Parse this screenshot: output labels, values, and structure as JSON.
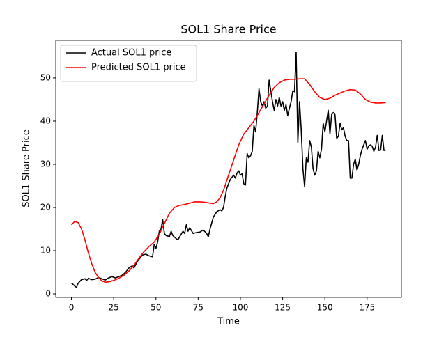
{
  "chart_data": {
    "type": "line",
    "title": "SOL1 Share Price",
    "x_label": "Time",
    "y_label": "SOL1 Share Price",
    "xlim": [
      -9.3,
      195.3
    ],
    "ylim": [
      -0.8,
      58.7
    ],
    "xticks": [
      0,
      25,
      50,
      75,
      100,
      125,
      150,
      175
    ],
    "yticks": [
      0,
      10,
      20,
      30,
      40,
      50
    ],
    "legend": "upper left",
    "series": [
      {
        "name": "Actual SOL1 price",
        "color": "#000000",
        "x": [
          0,
          1,
          2,
          3,
          4,
          6,
          8,
          9,
          10,
          12,
          14,
          16,
          18,
          20,
          22,
          24,
          26,
          28,
          30,
          32,
          34,
          36,
          37,
          39,
          40,
          42,
          44,
          46,
          48,
          49,
          50,
          51,
          52,
          53,
          54,
          55,
          56,
          58,
          59,
          60,
          62,
          63,
          64,
          66,
          67,
          68,
          69,
          70,
          72,
          74,
          76,
          78,
          80,
          81,
          82,
          84,
          86,
          88,
          89,
          90,
          91,
          92,
          94,
          96,
          97,
          98,
          99,
          100,
          101,
          102,
          103,
          104,
          105,
          106,
          107,
          108,
          109,
          110,
          111,
          112,
          113,
          114,
          115,
          116,
          117,
          118,
          119,
          120,
          121,
          122,
          123,
          124,
          125,
          126,
          127,
          128,
          129,
          130,
          131,
          132,
          133,
          134,
          135,
          136,
          137,
          138,
          139,
          140,
          141,
          142,
          143,
          144,
          145,
          146,
          147,
          148,
          149,
          150,
          151,
          152,
          153,
          154,
          155,
          156,
          157,
          158,
          159,
          160,
          161,
          162,
          163,
          164,
          165,
          166,
          167,
          168,
          169,
          170,
          171,
          172,
          173,
          174,
          175,
          176,
          177,
          178,
          179,
          180,
          181,
          182,
          183,
          184,
          185,
          186
        ],
        "values": [
          2.5,
          2.2,
          1.8,
          1.5,
          2.5,
          3.3,
          3.5,
          3.1,
          3.6,
          3.3,
          3.4,
          3.8,
          3.5,
          3.2,
          3.7,
          4.0,
          3.7,
          4.0,
          4.3,
          5.0,
          6.0,
          6.5,
          6.0,
          7.5,
          8.0,
          9.0,
          9.2,
          8.8,
          8.6,
          11.5,
          10.5,
          12.0,
          14.5,
          15.0,
          17.2,
          14.0,
          13.5,
          13.3,
          14.5,
          13.5,
          12.8,
          12.5,
          13.2,
          14.5,
          14.0,
          16.0,
          14.5,
          15.3,
          14.0,
          14.2,
          14.3,
          14.8,
          14.0,
          13.2,
          15.0,
          17.8,
          19.0,
          19.5,
          19.2,
          20.0,
          22.5,
          24.5,
          26.5,
          27.5,
          26.8,
          28.0,
          28.5,
          27.5,
          27.8,
          25.5,
          25.2,
          32.5,
          31.5,
          32.0,
          33.0,
          39.0,
          37.5,
          42.0,
          47.5,
          44.5,
          43.5,
          44.5,
          43.0,
          43.5,
          49.5,
          47.0,
          44.5,
          42.5,
          45.0,
          43.5,
          45.5,
          43.5,
          44.5,
          42.5,
          43.8,
          41.3,
          43.0,
          44.5,
          47.0,
          46.8,
          56.0,
          35.0,
          44.5,
          38.0,
          29.0,
          24.8,
          31.5,
          30.5,
          35.5,
          34.0,
          29.0,
          27.5,
          28.5,
          33.0,
          31.5,
          33.5,
          39.5,
          37.5,
          40.0,
          42.5,
          37.0,
          41.5,
          42.0,
          41.5,
          36.0,
          36.5,
          39.5,
          38.0,
          38.5,
          36.5,
          35.5,
          35.5,
          26.8,
          26.8,
          30.0,
          31.2,
          28.7,
          30.0,
          32.0,
          33.5,
          34.5,
          35.5,
          33.5,
          34.3,
          34.5,
          34.2,
          33.0,
          34.0,
          36.7,
          33.2,
          33.3,
          36.7,
          33.2,
          33.3
        ]
      },
      {
        "name": "Predicted SOL1 price",
        "color": "#ff0000",
        "x": [
          0,
          2,
          4,
          6,
          8,
          10,
          12,
          14,
          16,
          18,
          20,
          22,
          25,
          28,
          31,
          34,
          37,
          40,
          43,
          46,
          49,
          52,
          55,
          58,
          61,
          64,
          67,
          70,
          73,
          76,
          79,
          82,
          84,
          86,
          88,
          90,
          93,
          96,
          99,
          102,
          105,
          108,
          111,
          114,
          117,
          120,
          123,
          126,
          129,
          132,
          135,
          138,
          141,
          144,
          147,
          150,
          153,
          156,
          159,
          162,
          165,
          168,
          171,
          174,
          177,
          180,
          183,
          186
        ],
        "values": [
          16.0,
          16.8,
          16.5,
          15.0,
          12.5,
          9.5,
          7.0,
          5.0,
          3.8,
          3.0,
          2.7,
          2.8,
          3.1,
          3.6,
          4.3,
          5.3,
          6.6,
          8.3,
          9.8,
          11.0,
          12.0,
          13.8,
          16.3,
          18.7,
          20.0,
          20.5,
          20.7,
          21.0,
          21.3,
          21.3,
          21.2,
          21.0,
          20.9,
          21.3,
          22.3,
          24.0,
          27.5,
          31.0,
          34.5,
          37.0,
          38.5,
          40.0,
          42.0,
          44.0,
          46.0,
          47.8,
          48.9,
          49.5,
          49.7,
          49.7,
          49.8,
          49.8,
          48.5,
          46.8,
          45.5,
          45.0,
          45.3,
          46.0,
          46.5,
          47.0,
          47.3,
          47.2,
          46.3,
          45.0,
          44.4,
          44.2,
          44.2,
          44.3
        ]
      }
    ]
  }
}
